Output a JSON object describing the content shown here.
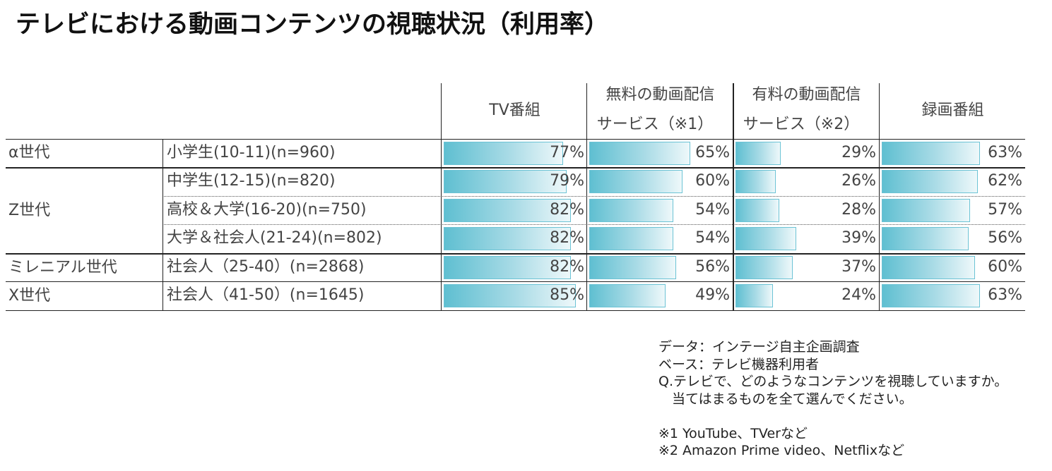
{
  "title": "テレビにおける動画コンテンツの視聴状況（利用率）",
  "headers": {
    "tv": "TV番組",
    "free_line1": "無料の動画配信",
    "free_line2": "サービス（※1）",
    "paid_line1": "有料の動画配信",
    "paid_line2": "サービス（※2）",
    "rec": "録画番組"
  },
  "generations": [
    "α世代",
    "Z世代",
    "ミレニアル世代",
    "X世代"
  ],
  "chart_data": {
    "type": "table",
    "title": "テレビにおける動画コンテンツの視聴状況（利用率）",
    "series": [
      {
        "name": "TV番組",
        "values": [
          77,
          79,
          82,
          82,
          82,
          85
        ]
      },
      {
        "name": "無料の動画配信サービス（※1）",
        "values": [
          65,
          60,
          54,
          54,
          56,
          49
        ]
      },
      {
        "name": "有料の動画配信サービス（※2）",
        "values": [
          29,
          26,
          28,
          39,
          37,
          24
        ]
      },
      {
        "name": "録画番組",
        "values": [
          63,
          62,
          57,
          56,
          60,
          63
        ]
      }
    ],
    "rows": [
      {
        "group": "α世代",
        "label": "小学生(10-11)(n=960)",
        "values": [
          77,
          65,
          29,
          63
        ],
        "labels": [
          "77%",
          "65%",
          "29%",
          "63%"
        ]
      },
      {
        "group": "Z世代",
        "label": "中学生(12-15)(n=820)",
        "values": [
          79,
          60,
          26,
          62
        ],
        "labels": [
          "79%",
          "60%",
          "26%",
          "62%"
        ]
      },
      {
        "group": "Z世代",
        "label": "高校＆大学(16-20)(n=750)",
        "values": [
          82,
          54,
          28,
          57
        ],
        "labels": [
          "82%",
          "54%",
          "28%",
          "57%"
        ]
      },
      {
        "group": "Z世代",
        "label": "大学＆社会人(21-24)(n=802)",
        "values": [
          82,
          54,
          39,
          56
        ],
        "labels": [
          "82%",
          "54%",
          "39%",
          "56%"
        ]
      },
      {
        "group": "ミレニアル世代",
        "label": "社会人（25-40）(n=2868)",
        "values": [
          82,
          56,
          37,
          60
        ],
        "labels": [
          "82%",
          "56%",
          "37%",
          "60%"
        ]
      },
      {
        "group": "X世代",
        "label": "社会人（41-50）(n=1645)",
        "values": [
          85,
          49,
          24,
          63
        ],
        "labels": [
          "85%",
          "49%",
          "24%",
          "63%"
        ]
      }
    ],
    "bar_color": "#5fbfd1"
  },
  "notes": [
    "データ：インテージ自主企画調査",
    "ベース：テレビ機器利用者",
    "Q.テレビで、どのようなコンテンツを視聴していますか。",
    "　当てはまるものを全て選んでください。",
    "",
    "※1 YouTube、TVerなど",
    "※2 Amazon Prime video、Netflixなど"
  ]
}
